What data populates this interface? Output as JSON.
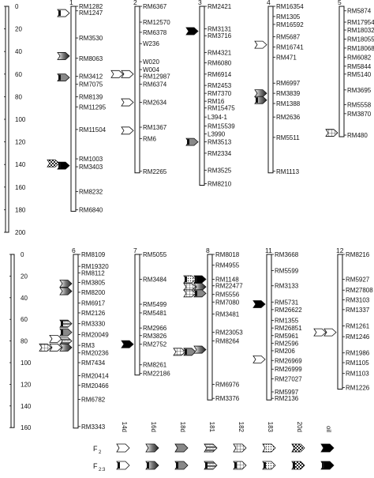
{
  "panels": [
    {
      "scale_ticks": [
        "0",
        "20",
        "40",
        "60",
        "80",
        "100",
        "120",
        "140",
        "160",
        "180",
        "200"
      ],
      "chromosomes": [
        {
          "id": "1",
          "markers": [
            {
              "name": "RM1282",
              "pos": 0
            },
            {
              "name": "RM1247",
              "pos": 4
            },
            {
              "name": "RM3530",
              "pos": 28
            },
            {
              "name": "RM8063",
              "pos": 46
            },
            {
              "name": "RM3412",
              "pos": 62
            },
            {
              "name": "RM7075",
              "pos": 69
            },
            {
              "name": "RM8139",
              "pos": 80
            },
            {
              "name": "RM11295",
              "pos": 89
            },
            {
              "name": "RM11504",
              "pos": 109
            },
            {
              "name": "RM1003",
              "pos": 135
            },
            {
              "name": "RM3403",
              "pos": 142
            },
            {
              "name": "RM8232",
              "pos": 164
            },
            {
              "name": "RM6840",
              "pos": 180
            }
          ]
        },
        {
          "id": "2",
          "markers": [
            {
              "name": "RM6367",
              "pos": 0
            },
            {
              "name": "RM12570",
              "pos": 14
            },
            {
              "name": "RM6378",
              "pos": 23
            },
            {
              "name": "W236",
              "pos": 33
            },
            {
              "name": "W020",
              "pos": 49
            },
            {
              "name": "W004",
              "pos": 56
            },
            {
              "name": "RM12987",
              "pos": 62
            },
            {
              "name": "RM6374",
              "pos": 69
            },
            {
              "name": "RM2634",
              "pos": 85
            },
            {
              "name": "RM1367",
              "pos": 107
            },
            {
              "name": "RM6",
              "pos": 117
            },
            {
              "name": "RM2265",
              "pos": 146
            }
          ]
        },
        {
          "id": "3",
          "markers": [
            {
              "name": "RM2421",
              "pos": 0
            },
            {
              "name": "RM3131",
              "pos": 20
            },
            {
              "name": "RM3716",
              "pos": 26
            },
            {
              "name": "RM4321",
              "pos": 41
            },
            {
              "name": "RM6080",
              "pos": 50
            },
            {
              "name": "RM6914",
              "pos": 60
            },
            {
              "name": "RM2453",
              "pos": 70
            },
            {
              "name": "RM7370",
              "pos": 77
            },
            {
              "name": "RM16",
              "pos": 84
            },
            {
              "name": "RM15475",
              "pos": 90
            },
            {
              "name": "L394-1",
              "pos": 98
            },
            {
              "name": "RM15539",
              "pos": 106
            },
            {
              "name": "L3990",
              "pos": 113
            },
            {
              "name": "RM3513",
              "pos": 120
            },
            {
              "name": "RM2334",
              "pos": 130
            },
            {
              "name": "RM3525",
              "pos": 145
            },
            {
              "name": "RM8210",
              "pos": 157
            }
          ]
        },
        {
          "id": "4",
          "markers": [
            {
              "name": "RM16354",
              "pos": 0
            },
            {
              "name": "RM1305",
              "pos": 9
            },
            {
              "name": "RM16592",
              "pos": 16
            },
            {
              "name": "RM5687",
              "pos": 27
            },
            {
              "name": "RM16741",
              "pos": 36
            },
            {
              "name": "RM471",
              "pos": 45
            },
            {
              "name": "RM6997",
              "pos": 68
            },
            {
              "name": "RM3839",
              "pos": 77
            },
            {
              "name": "RM1388",
              "pos": 86
            },
            {
              "name": "RM2636",
              "pos": 98
            },
            {
              "name": "RM5511",
              "pos": 116
            },
            {
              "name": "RM1113",
              "pos": 146
            }
          ]
        },
        {
          "id": "5",
          "markers": [
            {
              "name": "RM5874",
              "pos": 4
            },
            {
              "name": "RM17954",
              "pos": 14
            },
            {
              "name": "RM18032",
              "pos": 21
            },
            {
              "name": "RM18055",
              "pos": 29
            },
            {
              "name": "RM18068",
              "pos": 37
            },
            {
              "name": "RM6082",
              "pos": 45
            },
            {
              "name": "RM5844",
              "pos": 53
            },
            {
              "name": "RM5140",
              "pos": 60
            },
            {
              "name": "RM3695",
              "pos": 74
            },
            {
              "name": "RM5558",
              "pos": 87
            },
            {
              "name": "RM3870",
              "pos": 95
            },
            {
              "name": "RM480",
              "pos": 114
            }
          ]
        }
      ]
    },
    {
      "scale_ticks": [
        "0",
        "20",
        "40",
        "60",
        "80",
        "100",
        "120",
        "140",
        "160"
      ],
      "chromosomes": [
        {
          "id": "6",
          "markers": [
            {
              "name": "RM8109",
              "pos": 0
            },
            {
              "name": "RM19320",
              "pos": 11
            },
            {
              "name": "RM8112",
              "pos": 17
            },
            {
              "name": "RM3805",
              "pos": 26
            },
            {
              "name": "RM8200",
              "pos": 35
            },
            {
              "name": "RM6917",
              "pos": 45
            },
            {
              "name": "RM2126",
              "pos": 54
            },
            {
              "name": "RM3330",
              "pos": 64
            },
            {
              "name": "RM20049",
              "pos": 74
            },
            {
              "name": "RM3",
              "pos": 84
            },
            {
              "name": "RM20236",
              "pos": 91
            },
            {
              "name": "RM7434",
              "pos": 100
            },
            {
              "name": "RM20414",
              "pos": 112
            },
            {
              "name": "RM20466",
              "pos": 121
            },
            {
              "name": "RM6782",
              "pos": 134
            },
            {
              "name": "RM3343",
              "pos": 159
            }
          ]
        },
        {
          "id": "7",
          "markers": [
            {
              "name": "RM5055",
              "pos": 0
            },
            {
              "name": "RM3484",
              "pos": 23
            },
            {
              "name": "RM5499",
              "pos": 46
            },
            {
              "name": "RM5481",
              "pos": 54
            },
            {
              "name": "RM2966",
              "pos": 68
            },
            {
              "name": "RM3826",
              "pos": 75
            },
            {
              "name": "RM2752",
              "pos": 83
            },
            {
              "name": "RM8261",
              "pos": 102
            },
            {
              "name": "RM22186",
              "pos": 110
            }
          ]
        },
        {
          "id": "8",
          "markers": [
            {
              "name": "RM8018",
              "pos": 0
            },
            {
              "name": "RM4955",
              "pos": 10
            },
            {
              "name": "RM1148",
              "pos": 23
            },
            {
              "name": "RM22477",
              "pos": 29
            },
            {
              "name": "RM5556",
              "pos": 37
            },
            {
              "name": "RM7080",
              "pos": 44
            },
            {
              "name": "RM3481",
              "pos": 55
            },
            {
              "name": "RM23053",
              "pos": 72
            },
            {
              "name": "RM8264",
              "pos": 80
            },
            {
              "name": "RM6976",
              "pos": 120
            },
            {
              "name": "RM3376",
              "pos": 133
            }
          ]
        },
        {
          "id": "11",
          "markers": [
            {
              "name": "RM3668",
              "pos": 0
            },
            {
              "name": "RM5599",
              "pos": 15
            },
            {
              "name": "RM3133",
              "pos": 29
            },
            {
              "name": "RM5731",
              "pos": 44
            },
            {
              "name": "RM26622",
              "pos": 51
            },
            {
              "name": "RM1355",
              "pos": 61
            },
            {
              "name": "RM26851",
              "pos": 68
            },
            {
              "name": "RM5961",
              "pos": 75
            },
            {
              "name": "RM2596",
              "pos": 82
            },
            {
              "name": "RM206",
              "pos": 89
            },
            {
              "name": "RM26969",
              "pos": 98
            },
            {
              "name": "RM26999",
              "pos": 106
            },
            {
              "name": "RM27027",
              "pos": 115
            },
            {
              "name": "RM5997",
              "pos": 127
            },
            {
              "name": "RM2136",
              "pos": 133
            }
          ]
        },
        {
          "id": "12",
          "markers": [
            {
              "name": "RM8216",
              "pos": 0
            },
            {
              "name": "RM5927",
              "pos": 23
            },
            {
              "name": "RM27808",
              "pos": 33
            },
            {
              "name": "RM3103",
              "pos": 42
            },
            {
              "name": "RM1337",
              "pos": 51
            },
            {
              "name": "RM1261",
              "pos": 66
            },
            {
              "name": "RM1246",
              "pos": 76
            },
            {
              "name": "RM1986",
              "pos": 91
            },
            {
              "name": "RM1105",
              "pos": 100
            },
            {
              "name": "RM1103",
              "pos": 110
            },
            {
              "name": "RM1226",
              "pos": 123
            }
          ]
        }
      ]
    }
  ],
  "legend": {
    "traits": [
      "14d",
      "16d",
      "18d",
      "181",
      "182",
      "183",
      "20d",
      "oil"
    ],
    "rows": [
      {
        "label": "F",
        "sub": "2"
      },
      {
        "label": "F",
        "sub": "2:3"
      }
    ]
  },
  "qtl_markers": [
    {
      "panel": 0,
      "chromosome": "1",
      "pos": 6,
      "side": "left",
      "trait": "14d",
      "row": 1,
      "slot": 0
    },
    {
      "panel": 0,
      "chromosome": "1",
      "pos": 44,
      "side": "left",
      "trait": "16d",
      "row": 0,
      "slot": 0
    },
    {
      "panel": 0,
      "chromosome": "1",
      "pos": 63,
      "side": "left",
      "trait": "18d",
      "row": 1,
      "slot": 0
    },
    {
      "panel": 0,
      "chromosome": "1",
      "pos": 139,
      "side": "left",
      "trait": "20d",
      "row": 0,
      "slot": 1
    },
    {
      "panel": 0,
      "chromosome": "1",
      "pos": 141,
      "side": "left",
      "trait": "oil",
      "row": 1,
      "slot": 0
    },
    {
      "panel": 0,
      "chromosome": "2",
      "pos": 60,
      "side": "left",
      "trait": "14d",
      "row": 0,
      "slot": 1
    },
    {
      "panel": 0,
      "chromosome": "2",
      "pos": 60,
      "side": "left",
      "trait": "14d",
      "row": 0,
      "slot": 0
    },
    {
      "panel": 0,
      "chromosome": "2",
      "pos": 85,
      "side": "left",
      "trait": "14d",
      "row": 0,
      "slot": 0
    },
    {
      "panel": 0,
      "chromosome": "2",
      "pos": 110,
      "side": "left",
      "trait": "14d",
      "row": 0,
      "slot": 0
    },
    {
      "panel": 0,
      "chromosome": "3",
      "pos": 22,
      "side": "left",
      "trait": "oil",
      "row": 0,
      "slot": 0
    },
    {
      "panel": 0,
      "chromosome": "3",
      "pos": 120,
      "side": "left",
      "trait": "18d",
      "row": 1,
      "slot": 0
    },
    {
      "panel": 0,
      "chromosome": "4",
      "pos": 34,
      "side": "left",
      "trait": "14d",
      "row": 0,
      "slot": 0
    },
    {
      "panel": 0,
      "chromosome": "4",
      "pos": 77,
      "side": "left",
      "trait": "16d",
      "row": 0,
      "slot": 0
    },
    {
      "panel": 0,
      "chromosome": "4",
      "pos": 83,
      "side": "left",
      "trait": "16d",
      "row": 1,
      "slot": 0
    },
    {
      "panel": 0,
      "chromosome": "5",
      "pos": 112,
      "side": "left",
      "trait": "182",
      "row": 0,
      "slot": 0
    },
    {
      "panel": 1,
      "chromosome": "6",
      "pos": 27,
      "side": "left",
      "trait": "16d",
      "row": 0,
      "slot": 0
    },
    {
      "panel": 1,
      "chromosome": "6",
      "pos": 34,
      "side": "left",
      "trait": "16d",
      "row": 0,
      "slot": 0
    },
    {
      "panel": 1,
      "chromosome": "6",
      "pos": 64,
      "side": "left",
      "trait": "181",
      "row": 1,
      "slot": 0
    },
    {
      "panel": 1,
      "chromosome": "6",
      "pos": 72,
      "side": "left",
      "trait": "18d",
      "row": 1,
      "slot": 0
    },
    {
      "panel": 1,
      "chromosome": "6",
      "pos": 78,
      "side": "left",
      "trait": "14d",
      "row": 0,
      "slot": 1
    },
    {
      "panel": 1,
      "chromosome": "6",
      "pos": 80,
      "side": "left",
      "trait": "181",
      "row": 0,
      "slot": 0
    },
    {
      "panel": 1,
      "chromosome": "6",
      "pos": 86,
      "side": "left",
      "trait": "182",
      "row": 0,
      "slot": 2
    },
    {
      "panel": 1,
      "chromosome": "6",
      "pos": 86,
      "side": "left",
      "trait": "14d",
      "row": 0,
      "slot": 1
    },
    {
      "panel": 1,
      "chromosome": "6",
      "pos": 86,
      "side": "left",
      "trait": "16d",
      "row": 0,
      "slot": 0
    },
    {
      "panel": 1,
      "chromosome": "7",
      "pos": 83,
      "side": "left",
      "trait": "oil",
      "row": 0,
      "slot": 0
    },
    {
      "panel": 1,
      "chromosome": "8",
      "pos": 23,
      "side": "left",
      "trait": "183",
      "row": 1,
      "slot": 1
    },
    {
      "panel": 1,
      "chromosome": "8",
      "pos": 23,
      "side": "left",
      "trait": "oil",
      "row": 1,
      "slot": 0
    },
    {
      "panel": 1,
      "chromosome": "8",
      "pos": 30,
      "side": "left",
      "trait": "182",
      "row": 0,
      "slot": 1
    },
    {
      "panel": 1,
      "chromosome": "8",
      "pos": 30,
      "side": "left",
      "trait": "16d",
      "row": 0,
      "slot": 0
    },
    {
      "panel": 1,
      "chromosome": "8",
      "pos": 36,
      "side": "left",
      "trait": "182",
      "row": 0,
      "slot": 1
    },
    {
      "panel": 1,
      "chromosome": "8",
      "pos": 36,
      "side": "left",
      "trait": "18d",
      "row": 1,
      "slot": 0
    },
    {
      "panel": 1,
      "chromosome": "8",
      "pos": 90,
      "side": "left",
      "trait": "182",
      "row": 0,
      "slot": 2
    },
    {
      "panel": 1,
      "chromosome": "8",
      "pos": 90,
      "side": "left",
      "trait": "18d",
      "row": 1,
      "slot": 1
    },
    {
      "panel": 1,
      "chromosome": "8",
      "pos": 88,
      "side": "left",
      "trait": "16d",
      "row": 0,
      "slot": 0
    },
    {
      "panel": 1,
      "chromosome": "11",
      "pos": 46,
      "side": "left",
      "trait": "oil",
      "row": 0,
      "slot": 0
    },
    {
      "panel": 1,
      "chromosome": "11",
      "pos": 97,
      "side": "left",
      "trait": "14d",
      "row": 0,
      "slot": 0
    },
    {
      "panel": 1,
      "chromosome": "12",
      "pos": 72,
      "side": "left",
      "trait": "14d",
      "row": 0,
      "slot": 1
    },
    {
      "panel": 1,
      "chromosome": "12",
      "pos": 72,
      "side": "left",
      "trait": "14d",
      "row": 0,
      "slot": 0
    }
  ]
}
